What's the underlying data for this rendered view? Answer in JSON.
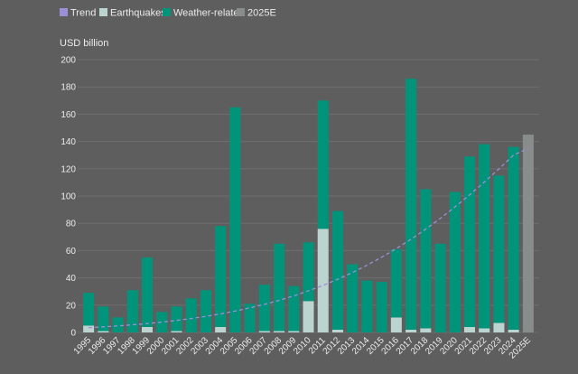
{
  "chart_data": {
    "type": "bar",
    "stacked": true,
    "unit_label": "USD billion",
    "ylim": [
      0,
      200
    ],
    "yticks": [
      0,
      20,
      40,
      60,
      80,
      100,
      120,
      140,
      160,
      180,
      200
    ],
    "grid": true,
    "legend_position": "top-left",
    "categories": [
      "1995",
      "1996",
      "1997",
      "1998",
      "1999",
      "2000",
      "2001",
      "2002",
      "2003",
      "2004",
      "2005",
      "2006",
      "2007",
      "2008",
      "2009",
      "2010",
      "2011",
      "2012",
      "2013",
      "2014",
      "2015",
      "2016",
      "2017",
      "2018",
      "2019",
      "2020",
      "2021",
      "2022",
      "2023",
      "2024",
      "2025E"
    ],
    "series": [
      {
        "name": "Earthquakes",
        "color": "#bcd4d0",
        "values": [
          5,
          1,
          0,
          0,
          4,
          0,
          1,
          0,
          0,
          4,
          0,
          0,
          1,
          1,
          1,
          23,
          76,
          2,
          0,
          0,
          0,
          11,
          2,
          3,
          0,
          0,
          4,
          3,
          7,
          2,
          0
        ]
      },
      {
        "name": "Weather-related",
        "color": "#00957a",
        "values": [
          24,
          18,
          11,
          31,
          51,
          15,
          18,
          25,
          31,
          74,
          165,
          21,
          34,
          64,
          33,
          43,
          94,
          87,
          50,
          38,
          37,
          50,
          184,
          102,
          65,
          103,
          125,
          135,
          108,
          134,
          0
        ]
      },
      {
        "name": "2025E",
        "color": "#888c8b",
        "values": [
          0,
          0,
          0,
          0,
          0,
          0,
          0,
          0,
          0,
          0,
          0,
          0,
          0,
          0,
          0,
          0,
          0,
          0,
          0,
          0,
          0,
          0,
          0,
          0,
          0,
          0,
          0,
          0,
          0,
          0,
          145
        ]
      }
    ],
    "trend": {
      "name": "Trend",
      "color": "#9b8fd6",
      "style": "dashed",
      "values": [
        3.5,
        4.1,
        4.8,
        5.6,
        6.5,
        7.6,
        8.8,
        10.2,
        11.8,
        13.6,
        15.7,
        18.0,
        20.6,
        23.5,
        26.8,
        30.5,
        34.5,
        39.0,
        43.9,
        49.3,
        55.2,
        61.5,
        68.3,
        75.7,
        83.6,
        92.0,
        100.8,
        110.2,
        119.9,
        130.0,
        135.0
      ]
    }
  }
}
